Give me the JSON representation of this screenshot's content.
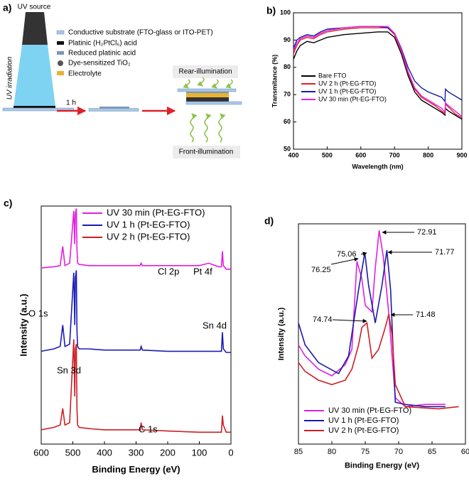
{
  "diagram": {
    "label": "a)",
    "uv_source": "UV source",
    "uv_irradiation": "UV irradiation",
    "legend": [
      "Conductive substrate (FTO-glass or ITO-PET)",
      "Platinic (H₂PtCl₆) acid",
      "Reduced platinic acid",
      "Dye-sensitized TiO₂",
      "Electrolyte"
    ],
    "time": "1 h",
    "rear": "Rear-illumination",
    "front": "Front-illumination"
  },
  "chart_data": [
    {
      "type": "line",
      "label": "b)",
      "x_label": "Wavelength (nm)",
      "y_label": "Transmitance (%)",
      "xlim": [
        400,
        900
      ],
      "xticks": [
        400,
        500,
        600,
        700,
        800,
        900
      ],
      "ylim": [
        50,
        100
      ],
      "yticks": [
        50,
        60,
        70,
        80,
        90,
        100
      ],
      "legend": "center left",
      "x": [
        400,
        410,
        420,
        440,
        460,
        480,
        500,
        550,
        600,
        650,
        680,
        700,
        720,
        740,
        760,
        780,
        800,
        820,
        840,
        850,
        851,
        860,
        880,
        900
      ],
      "series": [
        {
          "name": "Bare FTO",
          "color": "#000000",
          "values": [
            83,
            86,
            88,
            89.5,
            89,
            90,
            91,
            92,
            92.5,
            93,
            93,
            91,
            85,
            77,
            71,
            68,
            66.5,
            65,
            63.5,
            62.5,
            65,
            64,
            62.5,
            61
          ]
        },
        {
          "name": "UV 2 h (Pt-EG-FTO)",
          "color": "#e0202a",
          "values": [
            85,
            88,
            90,
            91,
            90.5,
            92,
            93,
            94,
            94.5,
            94.5,
            94.5,
            92,
            86,
            78,
            72,
            69,
            67.5,
            66,
            64,
            63,
            66.5,
            65.5,
            63,
            61.5
          ]
        },
        {
          "name": "UV 1 h (Pt-EG-FTO)",
          "color": "#1a1aa8",
          "values": [
            87,
            90,
            91,
            92,
            91.5,
            93,
            94,
            94.5,
            95,
            95,
            94.5,
            92.5,
            87,
            80,
            75,
            72.5,
            71,
            70,
            69,
            67.5,
            72,
            71,
            69.5,
            68
          ]
        },
        {
          "name": "UV 30 min (Pt-EG-FTO)",
          "color": "#e020e0",
          "values": [
            86,
            89,
            90.5,
            91.5,
            91,
            92.5,
            93.5,
            94.5,
            95,
            95,
            95,
            92.5,
            86.5,
            78.5,
            72.5,
            69.5,
            68,
            66.5,
            65,
            63.5,
            67,
            66,
            64,
            62
          ]
        }
      ]
    },
    {
      "type": "line",
      "label": "c)",
      "x_label": "Binding Energy (eV)",
      "y_label": "Intensity (a.u.)",
      "xlim": [
        600,
        0
      ],
      "xticks": [
        600,
        500,
        400,
        300,
        200,
        100,
        0
      ],
      "ylim": [
        0,
        100
      ],
      "legend": "upper center",
      "annotations": [
        "O 1s",
        "Sn 3d",
        "C 1s",
        "Sn 4d",
        "Cl 2p",
        "Pt 4f"
      ],
      "x": [
        600,
        560,
        540,
        532,
        525,
        510,
        497,
        494,
        492,
        489,
        487,
        485,
        480,
        450,
        400,
        300,
        287,
        284,
        280,
        200,
        100,
        70,
        40,
        30,
        27,
        24,
        15,
        0
      ],
      "series": [
        {
          "name": "UV 30 min (Pt-EG-FTO)",
          "color": "#e31ee0",
          "values": [
            74,
            74.5,
            75,
            83,
            75,
            76,
            98,
            84,
            97,
            99,
            82,
            76,
            75.5,
            75,
            75,
            75,
            75,
            76,
            75,
            75,
            75,
            76,
            74.5,
            74.5,
            81,
            75,
            73.5,
            73.5
          ]
        },
        {
          "name": "UV 1 h (Pt-EG-FTO)",
          "color": "#1c1cb5",
          "values": [
            39,
            40,
            41,
            50,
            41,
            42,
            72,
            50,
            70,
            73,
            48,
            41,
            40,
            40,
            39.5,
            39.5,
            39.5,
            41,
            39.5,
            39,
            39,
            39,
            39,
            39,
            47,
            40,
            38.5,
            38.5
          ]
        },
        {
          "name": "UV 2 h (Pt-EG-FTO)",
          "color": "#cc1f25",
          "values": [
            6,
            7,
            8,
            15,
            8,
            9,
            44,
            20,
            40,
            42,
            15,
            8,
            7,
            6.5,
            6,
            6,
            6,
            9,
            6,
            5.5,
            5,
            5,
            5,
            5,
            12,
            8,
            5,
            5
          ]
        }
      ]
    },
    {
      "type": "line",
      "label": "d)",
      "x_label": "Binding Energy (eV)",
      "y_label": "Intensity (a.u.)",
      "xlim": [
        85,
        60
      ],
      "xticks": [
        85,
        80,
        75,
        70,
        65,
        60
      ],
      "ylim": [
        0,
        100
      ],
      "legend": "lower left",
      "annotations": [
        "72.91",
        "75.06",
        "71.77",
        "76.25",
        "74.74",
        "71.48"
      ],
      "series": [
        {
          "name": "UV 30 min (Pt-EG-FTO)",
          "color": "#e020e0",
          "x": [
            85,
            84,
            82,
            80,
            78,
            77,
            76.25,
            75.5,
            75,
            74,
            73.5,
            72.91,
            72.3,
            71.5,
            70.5,
            69,
            66,
            63
          ],
          "values": [
            45,
            40,
            34,
            31,
            36,
            43,
            83,
            75,
            63,
            60,
            80,
            97,
            85,
            60,
            21,
            17,
            18,
            18
          ]
        },
        {
          "name": "UV 1 h (Pt-EG-FTO)",
          "color": "#1a1aa8",
          "x": [
            85,
            84,
            82,
            79,
            77.5,
            77,
            76,
            75.06,
            74.5,
            73.5,
            72.5,
            71.77,
            71.2,
            70.5,
            69,
            66,
            63
          ],
          "values": [
            55,
            45,
            37,
            32,
            40,
            50,
            70,
            87,
            72,
            55,
            72,
            88,
            70,
            19,
            18,
            17,
            17
          ]
        },
        {
          "name": "UV 2 h (Pt-EG-FTO)",
          "color": "#cc1f25",
          "x": [
            85,
            84,
            82,
            80,
            78,
            77,
            76,
            75.5,
            74.74,
            74,
            73,
            72,
            71.48,
            71,
            70.5,
            69,
            64,
            61
          ],
          "values": [
            37,
            33,
            29,
            27,
            29,
            34,
            45,
            53,
            55,
            39,
            43,
            53,
            59,
            50,
            27,
            17,
            16,
            17
          ]
        }
      ]
    }
  ]
}
